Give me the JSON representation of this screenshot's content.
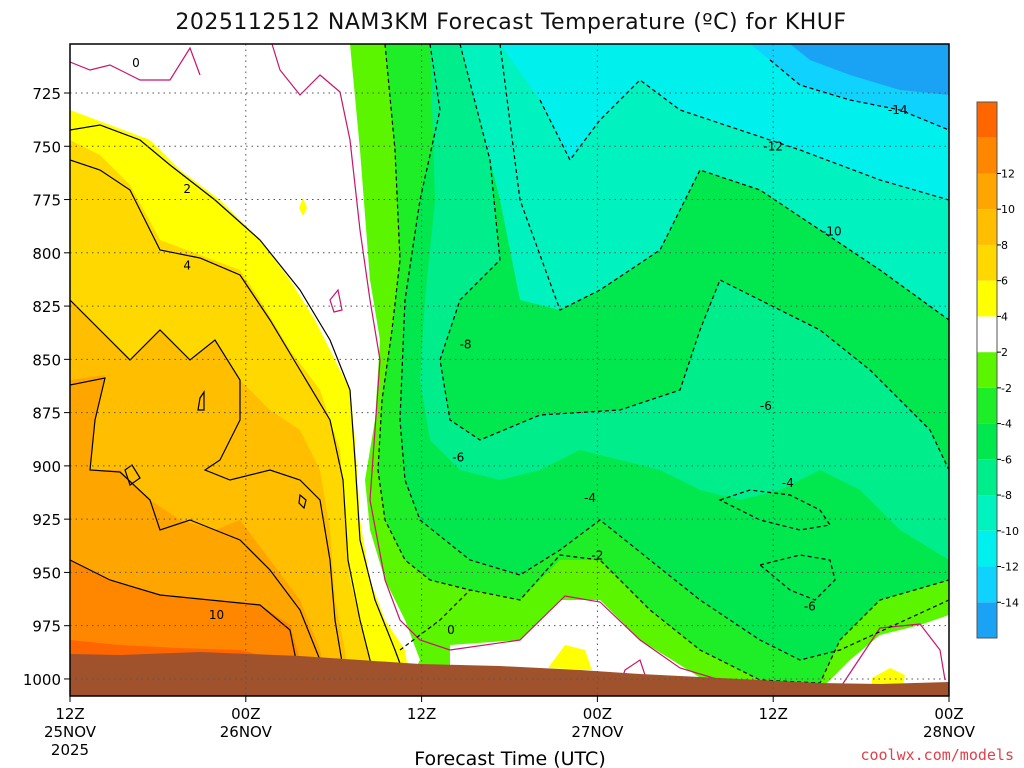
{
  "chart_data": {
    "type": "heatmap",
    "title": "2025112512 NAM3KM Forecast Temperature (ºC) for KHUF",
    "xlabel": "Forecast Time (UTC)",
    "ylabel": "",
    "x_ticks": [
      {
        "hour": 0,
        "label": "12Z",
        "date": "25NOV",
        "year": "2025"
      },
      {
        "hour": 12,
        "label": "00Z",
        "date": "26NOV",
        "year": ""
      },
      {
        "hour": 24,
        "label": "12Z",
        "date": "",
        "year": ""
      },
      {
        "hour": 36,
        "label": "00Z",
        "date": "27NOV",
        "year": ""
      },
      {
        "hour": 48,
        "label": "12Z",
        "date": "",
        "year": ""
      },
      {
        "hour": 60,
        "label": "00Z",
        "date": "28NOV",
        "year": ""
      }
    ],
    "xlim_hours": [
      0,
      60
    ],
    "y_ticks": [
      725,
      750,
      775,
      800,
      825,
      850,
      875,
      900,
      925,
      950,
      975,
      1000
    ],
    "ylim_hpa": [
      1008,
      702
    ],
    "grid": true,
    "colorbar": {
      "levels": [
        -16,
        -14,
        -12,
        -10,
        -8,
        -6,
        -4,
        -2,
        2,
        4,
        6,
        8,
        10,
        12,
        14
      ],
      "labels": [
        "-14",
        "-12",
        "-10",
        "-8",
        "-6",
        "-4",
        "-2",
        "2",
        "4",
        "6",
        "8",
        "10",
        "12"
      ],
      "colors": [
        "#1aa3f5",
        "#10d2ff",
        "#00f0ee",
        "#00f2be",
        "#00ed8c",
        "#00e84e",
        "#1eee28",
        "#5cf500",
        "#ffffff",
        "#ffff00",
        "#ffd800",
        "#ffbf00",
        "#ffa500",
        "#ff8700",
        "#ff6600"
      ]
    },
    "contour_labels": [
      {
        "text": "0",
        "hour": 4.5,
        "p": 711
      },
      {
        "text": "2",
        "hour": 8.0,
        "p": 770
      },
      {
        "text": "4",
        "hour": 8.0,
        "p": 806
      },
      {
        "text": "10",
        "hour": 10.0,
        "p": 970
      },
      {
        "text": "0",
        "hour": 26.0,
        "p": 977
      },
      {
        "text": "-8",
        "hour": 27.0,
        "p": 843
      },
      {
        "text": "-6",
        "hour": 26.5,
        "p": 896
      },
      {
        "text": "-4",
        "hour": 35.5,
        "p": 915
      },
      {
        "text": "-2",
        "hour": 36.0,
        "p": 942
      },
      {
        "text": "-6",
        "hour": 47.5,
        "p": 872
      },
      {
        "text": "-4",
        "hour": 49.0,
        "p": 908
      },
      {
        "text": "-6",
        "hour": 50.5,
        "p": 966
      },
      {
        "text": "-12",
        "hour": 48.0,
        "p": 750
      },
      {
        "text": "-10",
        "hour": 52.0,
        "p": 790
      },
      {
        "text": "-14",
        "hour": 56.5,
        "p": 733
      }
    ],
    "surface_color": "#a0522d",
    "source": "coolwx.com/models"
  }
}
